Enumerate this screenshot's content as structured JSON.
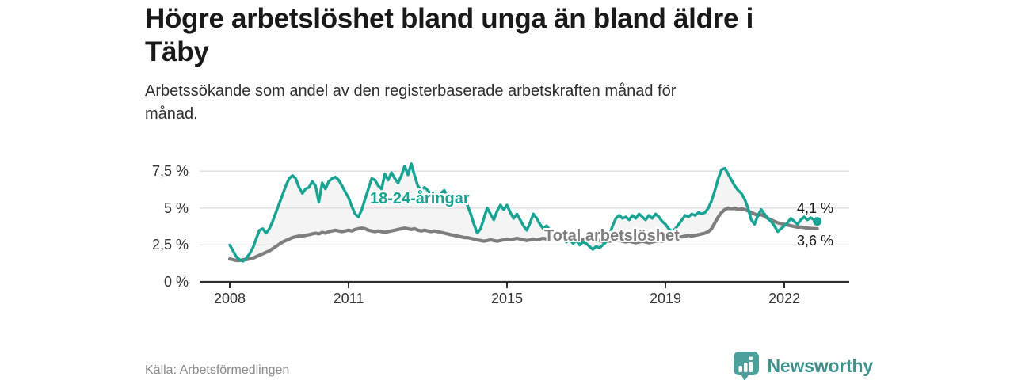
{
  "header": {
    "title_line1": "Högre arbetslöshet bland unga än bland äldre i",
    "title_line2": "Täby",
    "subtitle_line1": "Arbetssökande som andel av den registerbaserade arbetskraften månad för",
    "subtitle_line2": "månad."
  },
  "chart_data": {
    "type": "line",
    "title": "Högre arbetslöshet bland unga än bland äldre i Täby",
    "subtitle": "Arbetssökande som andel av den registerbaserade arbetskraften månad för månad.",
    "unit": "%",
    "x_start": "2008-01",
    "x_end": "2022-11",
    "x_interval": "monthly",
    "ylim": [
      0,
      8.5
    ],
    "grid": "horizontal",
    "y_ticks": [
      {
        "label": "0 %",
        "value": 0
      },
      {
        "label": "2,5 %",
        "value": 2.5
      },
      {
        "label": "5 %",
        "value": 5
      },
      {
        "label": "7,5 %",
        "value": 7.5
      }
    ],
    "x_ticks": [
      {
        "label": "2008",
        "year": 2008
      },
      {
        "label": "2011",
        "year": 2011
      },
      {
        "label": "2015",
        "year": 2015
      },
      {
        "label": "2019",
        "year": 2019
      },
      {
        "label": "2022",
        "year": 2022
      }
    ],
    "series": [
      {
        "name": "18-24-åringar",
        "color": "#18a393",
        "end_label": "4,1 %",
        "end_value": 4.1,
        "values": [
          2.5,
          2.1,
          1.7,
          1.5,
          1.4,
          1.6,
          1.9,
          2.3,
          2.9,
          3.5,
          3.6,
          3.3,
          3.6,
          4.1,
          4.7,
          5.3,
          5.9,
          6.5,
          7.0,
          7.2,
          7.0,
          6.4,
          6.0,
          6.3,
          6.4,
          6.8,
          6.5,
          5.4,
          6.7,
          6.3,
          6.8,
          7.0,
          7.1,
          6.9,
          6.5,
          6.1,
          5.7,
          5.1,
          4.6,
          4.4,
          4.9,
          5.6,
          6.3,
          7.0,
          6.9,
          6.5,
          6.3,
          7.3,
          6.9,
          7.4,
          7.0,
          6.7,
          7.2,
          7.85,
          7.25,
          8.0,
          7.2,
          6.5,
          6.2,
          6.4,
          6.2,
          5.9,
          6.1,
          5.7,
          6.0,
          6.2,
          5.8,
          5.5,
          5.9,
          5.6,
          5.3,
          5.6,
          5.2,
          4.6,
          3.9,
          3.3,
          3.6,
          4.3,
          5.0,
          4.6,
          4.2,
          4.8,
          5.2,
          4.9,
          5.2,
          4.7,
          4.3,
          4.6,
          4.2,
          3.8,
          3.5,
          4.0,
          4.6,
          4.3,
          3.9,
          3.6,
          3.8,
          3.5,
          3.2,
          3.0,
          2.8,
          3.0,
          2.7,
          2.9,
          2.6,
          2.8,
          2.5,
          2.7,
          2.6,
          2.4,
          2.2,
          2.4,
          2.3,
          2.5,
          2.7,
          3.2,
          3.8,
          4.3,
          4.5,
          4.3,
          4.4,
          4.2,
          4.5,
          4.3,
          4.6,
          4.4,
          4.2,
          4.5,
          4.3,
          4.6,
          4.4,
          4.1,
          3.9,
          3.6,
          3.4,
          3.6,
          3.9,
          4.2,
          4.5,
          4.4,
          4.6,
          4.5,
          4.7,
          4.6,
          4.7,
          5.0,
          5.5,
          6.2,
          7.0,
          7.6,
          7.7,
          7.3,
          6.9,
          6.5,
          6.2,
          6.0,
          5.6,
          5.0,
          4.2,
          3.9,
          4.5,
          4.9,
          4.6,
          4.3,
          4.1,
          3.8,
          3.4,
          3.6,
          3.8,
          4.0,
          4.3,
          4.1,
          3.9,
          4.2,
          4.4,
          4.2,
          4.35,
          4.2,
          4.1
        ]
      },
      {
        "name": "Total arbetslöshet",
        "color": "#7e7e7e",
        "end_label": "3,6 %",
        "end_value": 3.6,
        "values": [
          1.55,
          1.5,
          1.45,
          1.45,
          1.5,
          1.5,
          1.55,
          1.6,
          1.7,
          1.8,
          1.9,
          2.0,
          2.1,
          2.25,
          2.4,
          2.55,
          2.7,
          2.8,
          2.9,
          3.0,
          3.05,
          3.1,
          3.1,
          3.15,
          3.2,
          3.25,
          3.3,
          3.25,
          3.35,
          3.3,
          3.4,
          3.45,
          3.5,
          3.45,
          3.4,
          3.45,
          3.5,
          3.45,
          3.55,
          3.6,
          3.65,
          3.6,
          3.5,
          3.45,
          3.4,
          3.45,
          3.4,
          3.35,
          3.4,
          3.45,
          3.5,
          3.55,
          3.6,
          3.65,
          3.6,
          3.55,
          3.6,
          3.5,
          3.45,
          3.5,
          3.45,
          3.4,
          3.45,
          3.4,
          3.35,
          3.3,
          3.25,
          3.2,
          3.15,
          3.1,
          3.05,
          3.0,
          3.0,
          2.95,
          2.9,
          2.85,
          2.8,
          2.75,
          2.8,
          2.85,
          2.8,
          2.75,
          2.8,
          2.85,
          2.9,
          2.85,
          2.9,
          2.95,
          2.9,
          2.85,
          2.8,
          2.85,
          2.9,
          2.85,
          2.9,
          2.95,
          2.9,
          2.95,
          3.0,
          2.95,
          2.9,
          2.85,
          2.9,
          2.85,
          2.8,
          2.85,
          2.9,
          2.85,
          2.8,
          2.85,
          2.9,
          2.85,
          2.8,
          2.75,
          2.8,
          2.75,
          2.8,
          2.85,
          2.8,
          2.75,
          2.7,
          2.75,
          2.7,
          2.65,
          2.7,
          2.75,
          2.7,
          2.65,
          2.7,
          2.75,
          2.8,
          2.75,
          2.9,
          2.95,
          3.0,
          3.05,
          3.0,
          3.05,
          3.1,
          3.15,
          3.1,
          3.15,
          3.2,
          3.25,
          3.3,
          3.4,
          3.6,
          4.0,
          4.4,
          4.7,
          4.9,
          5.0,
          4.95,
          5.0,
          4.9,
          4.95,
          4.9,
          4.8,
          4.7,
          4.6,
          4.5,
          4.55,
          4.45,
          4.3,
          4.2,
          4.1,
          4.0,
          3.95,
          3.9,
          3.85,
          3.8,
          3.75,
          3.7,
          3.72,
          3.68,
          3.65,
          3.62,
          3.6,
          3.6
        ]
      }
    ],
    "fill_between_color": "#f4f4f4",
    "gridline_color": "#dcdcdc",
    "axis_color": "#2e2e2e"
  },
  "footer": {
    "source": "Källa: Arbetsförmedlingen",
    "brand": "Newsworthy",
    "brand_color": "#3f918d",
    "brand_icon_color": "#4d9f9c"
  }
}
